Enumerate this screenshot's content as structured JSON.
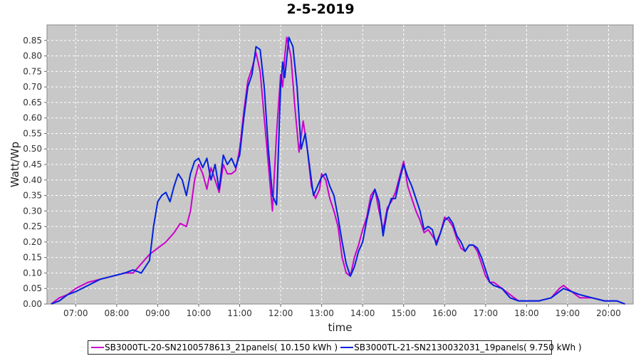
{
  "chart_data": {
    "type": "line",
    "title": "2-5-2019",
    "xlabel": "time",
    "ylabel": "Watt/Wp",
    "xlim": [
      6.3,
      20.6
    ],
    "ylim": [
      0,
      0.9
    ],
    "grid": true,
    "legend_position": "bottom",
    "x_ticks": [
      "07:00",
      "08:00",
      "09:00",
      "10:00",
      "11:00",
      "12:00",
      "13:00",
      "14:00",
      "15:00",
      "16:00",
      "17:00",
      "18:00",
      "19:00",
      "20:00"
    ],
    "y_ticks": [
      "0.00",
      "0.05",
      "0.10",
      "0.15",
      "0.20",
      "0.25",
      "0.30",
      "0.35",
      "0.40",
      "0.45",
      "0.50",
      "0.55",
      "0.60",
      "0.65",
      "0.70",
      "0.75",
      "0.80",
      "0.85"
    ],
    "series": [
      {
        "name": "SB3000TL-20-SN2100578613_21panels( 10.150 kWh )",
        "color": "#cc00cc",
        "points": [
          [
            6.4,
            0.0
          ],
          [
            6.6,
            0.02
          ],
          [
            6.8,
            0.03
          ],
          [
            7.0,
            0.05
          ],
          [
            7.3,
            0.07
          ],
          [
            7.6,
            0.08
          ],
          [
            7.9,
            0.09
          ],
          [
            8.2,
            0.1
          ],
          [
            8.4,
            0.1
          ],
          [
            8.6,
            0.13
          ],
          [
            8.8,
            0.16
          ],
          [
            9.0,
            0.18
          ],
          [
            9.2,
            0.2
          ],
          [
            9.4,
            0.23
          ],
          [
            9.55,
            0.26
          ],
          [
            9.7,
            0.25
          ],
          [
            9.8,
            0.3
          ],
          [
            9.9,
            0.4
          ],
          [
            10.0,
            0.45
          ],
          [
            10.1,
            0.42
          ],
          [
            10.2,
            0.37
          ],
          [
            10.3,
            0.44
          ],
          [
            10.4,
            0.4
          ],
          [
            10.5,
            0.36
          ],
          [
            10.6,
            0.45
          ],
          [
            10.7,
            0.42
          ],
          [
            10.8,
            0.42
          ],
          [
            10.9,
            0.43
          ],
          [
            11.0,
            0.5
          ],
          [
            11.1,
            0.62
          ],
          [
            11.2,
            0.72
          ],
          [
            11.3,
            0.76
          ],
          [
            11.4,
            0.81
          ],
          [
            11.5,
            0.75
          ],
          [
            11.6,
            0.6
          ],
          [
            11.7,
            0.45
          ],
          [
            11.8,
            0.3
          ],
          [
            11.9,
            0.55
          ],
          [
            12.0,
            0.74
          ],
          [
            12.05,
            0.7
          ],
          [
            12.1,
            0.8
          ],
          [
            12.15,
            0.86
          ],
          [
            12.25,
            0.8
          ],
          [
            12.35,
            0.63
          ],
          [
            12.45,
            0.49
          ],
          [
            12.55,
            0.59
          ],
          [
            12.65,
            0.5
          ],
          [
            12.75,
            0.38
          ],
          [
            12.85,
            0.34
          ],
          [
            12.95,
            0.37
          ],
          [
            13.0,
            0.42
          ],
          [
            13.1,
            0.4
          ],
          [
            13.2,
            0.34
          ],
          [
            13.3,
            0.3
          ],
          [
            13.4,
            0.25
          ],
          [
            13.5,
            0.15
          ],
          [
            13.6,
            0.1
          ],
          [
            13.7,
            0.09
          ],
          [
            13.8,
            0.15
          ],
          [
            13.9,
            0.19
          ],
          [
            14.0,
            0.24
          ],
          [
            14.1,
            0.28
          ],
          [
            14.2,
            0.35
          ],
          [
            14.3,
            0.37
          ],
          [
            14.4,
            0.3
          ],
          [
            14.5,
            0.24
          ],
          [
            14.6,
            0.31
          ],
          [
            14.7,
            0.33
          ],
          [
            14.8,
            0.36
          ],
          [
            14.9,
            0.41
          ],
          [
            15.0,
            0.46
          ],
          [
            15.1,
            0.38
          ],
          [
            15.2,
            0.34
          ],
          [
            15.3,
            0.3
          ],
          [
            15.4,
            0.27
          ],
          [
            15.5,
            0.23
          ],
          [
            15.6,
            0.24
          ],
          [
            15.7,
            0.22
          ],
          [
            15.8,
            0.2
          ],
          [
            15.9,
            0.23
          ],
          [
            16.0,
            0.28
          ],
          [
            16.1,
            0.27
          ],
          [
            16.2,
            0.25
          ],
          [
            16.3,
            0.21
          ],
          [
            16.4,
            0.18
          ],
          [
            16.5,
            0.17
          ],
          [
            16.6,
            0.19
          ],
          [
            16.7,
            0.19
          ],
          [
            16.8,
            0.17
          ],
          [
            16.9,
            0.13
          ],
          [
            17.0,
            0.09
          ],
          [
            17.1,
            0.07
          ],
          [
            17.2,
            0.07
          ],
          [
            17.4,
            0.05
          ],
          [
            17.6,
            0.03
          ],
          [
            17.8,
            0.01
          ],
          [
            18.0,
            0.01
          ],
          [
            18.3,
            0.01
          ],
          [
            18.6,
            0.02
          ],
          [
            18.8,
            0.05
          ],
          [
            18.9,
            0.06
          ],
          [
            19.1,
            0.04
          ],
          [
            19.3,
            0.02
          ],
          [
            19.6,
            0.02
          ],
          [
            19.9,
            0.01
          ],
          [
            20.2,
            0.01
          ],
          [
            20.4,
            0.0
          ]
        ]
      },
      {
        "name": "SB3000TL-21-SN2130032031_19panels( 9.750 kWh )",
        "color": "#0022dd",
        "points": [
          [
            6.4,
            0.0
          ],
          [
            6.6,
            0.01
          ],
          [
            6.8,
            0.03
          ],
          [
            7.0,
            0.04
          ],
          [
            7.3,
            0.06
          ],
          [
            7.6,
            0.08
          ],
          [
            7.9,
            0.09
          ],
          [
            8.2,
            0.1
          ],
          [
            8.4,
            0.11
          ],
          [
            8.6,
            0.1
          ],
          [
            8.8,
            0.14
          ],
          [
            8.9,
            0.25
          ],
          [
            9.0,
            0.33
          ],
          [
            9.1,
            0.35
          ],
          [
            9.2,
            0.36
          ],
          [
            9.3,
            0.33
          ],
          [
            9.4,
            0.38
          ],
          [
            9.5,
            0.42
          ],
          [
            9.6,
            0.4
          ],
          [
            9.7,
            0.35
          ],
          [
            9.8,
            0.42
          ],
          [
            9.9,
            0.46
          ],
          [
            10.0,
            0.47
          ],
          [
            10.1,
            0.44
          ],
          [
            10.2,
            0.47
          ],
          [
            10.3,
            0.4
          ],
          [
            10.4,
            0.45
          ],
          [
            10.5,
            0.37
          ],
          [
            10.6,
            0.48
          ],
          [
            10.7,
            0.45
          ],
          [
            10.8,
            0.47
          ],
          [
            10.9,
            0.44
          ],
          [
            11.0,
            0.48
          ],
          [
            11.1,
            0.6
          ],
          [
            11.2,
            0.7
          ],
          [
            11.3,
            0.74
          ],
          [
            11.4,
            0.83
          ],
          [
            11.5,
            0.82
          ],
          [
            11.6,
            0.7
          ],
          [
            11.7,
            0.5
          ],
          [
            11.8,
            0.35
          ],
          [
            11.9,
            0.32
          ],
          [
            12.0,
            0.7
          ],
          [
            12.05,
            0.78
          ],
          [
            12.1,
            0.73
          ],
          [
            12.2,
            0.86
          ],
          [
            12.3,
            0.83
          ],
          [
            12.4,
            0.7
          ],
          [
            12.5,
            0.5
          ],
          [
            12.6,
            0.55
          ],
          [
            12.7,
            0.45
          ],
          [
            12.8,
            0.35
          ],
          [
            12.9,
            0.38
          ],
          [
            13.0,
            0.41
          ],
          [
            13.1,
            0.42
          ],
          [
            13.2,
            0.38
          ],
          [
            13.3,
            0.35
          ],
          [
            13.4,
            0.28
          ],
          [
            13.5,
            0.2
          ],
          [
            13.6,
            0.13
          ],
          [
            13.7,
            0.09
          ],
          [
            13.8,
            0.12
          ],
          [
            13.9,
            0.17
          ],
          [
            14.0,
            0.2
          ],
          [
            14.1,
            0.27
          ],
          [
            14.2,
            0.33
          ],
          [
            14.3,
            0.37
          ],
          [
            14.4,
            0.33
          ],
          [
            14.5,
            0.22
          ],
          [
            14.6,
            0.3
          ],
          [
            14.7,
            0.34
          ],
          [
            14.8,
            0.34
          ],
          [
            14.9,
            0.4
          ],
          [
            15.0,
            0.45
          ],
          [
            15.1,
            0.41
          ],
          [
            15.2,
            0.38
          ],
          [
            15.3,
            0.34
          ],
          [
            15.4,
            0.3
          ],
          [
            15.5,
            0.24
          ],
          [
            15.6,
            0.25
          ],
          [
            15.7,
            0.24
          ],
          [
            15.8,
            0.19
          ],
          [
            15.9,
            0.23
          ],
          [
            16.0,
            0.27
          ],
          [
            16.1,
            0.28
          ],
          [
            16.2,
            0.26
          ],
          [
            16.3,
            0.22
          ],
          [
            16.4,
            0.2
          ],
          [
            16.5,
            0.17
          ],
          [
            16.6,
            0.19
          ],
          [
            16.7,
            0.19
          ],
          [
            16.8,
            0.18
          ],
          [
            16.9,
            0.15
          ],
          [
            17.0,
            0.11
          ],
          [
            17.1,
            0.07
          ],
          [
            17.2,
            0.06
          ],
          [
            17.4,
            0.05
          ],
          [
            17.6,
            0.02
          ],
          [
            17.8,
            0.01
          ],
          [
            18.0,
            0.01
          ],
          [
            18.3,
            0.01
          ],
          [
            18.6,
            0.02
          ],
          [
            18.8,
            0.04
          ],
          [
            18.9,
            0.05
          ],
          [
            19.1,
            0.04
          ],
          [
            19.3,
            0.03
          ],
          [
            19.6,
            0.02
          ],
          [
            19.9,
            0.01
          ],
          [
            20.2,
            0.01
          ],
          [
            20.4,
            0.0
          ]
        ]
      }
    ]
  }
}
